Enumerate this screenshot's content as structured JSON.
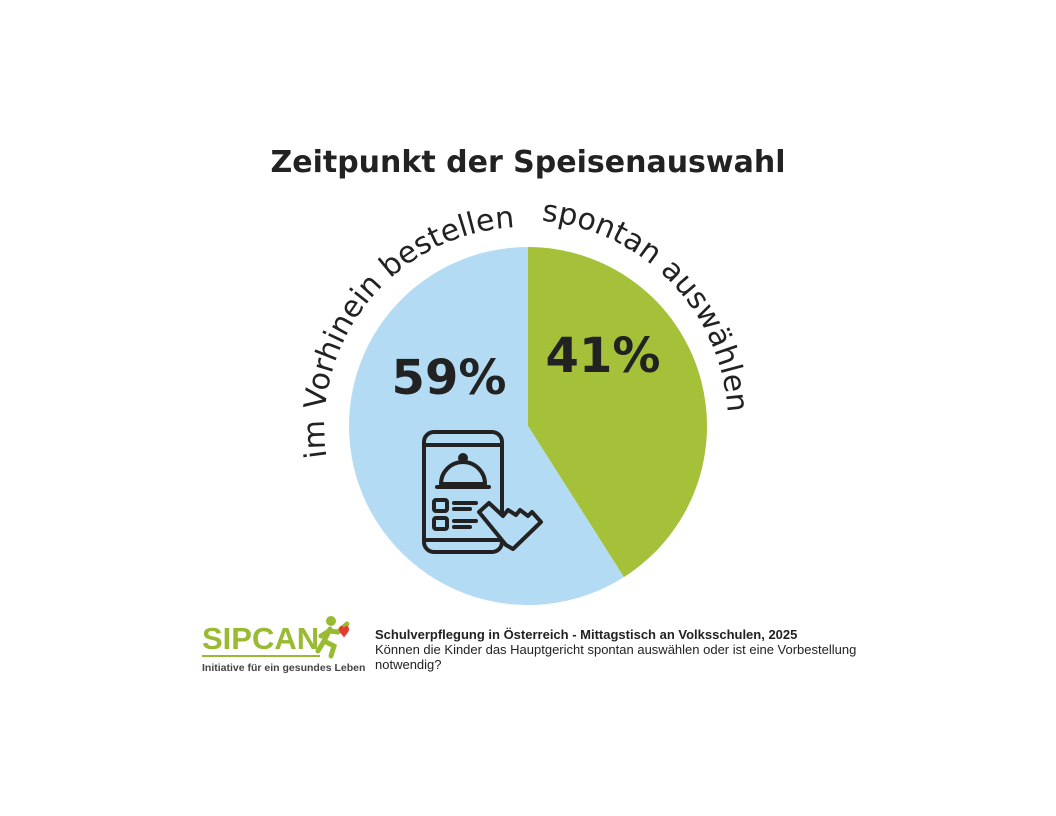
{
  "chart_data": {
    "type": "pie",
    "title": "Zeitpunkt der Speisenauswahl",
    "slices": [
      {
        "label": "spontan auswählen",
        "value": 41,
        "value_label": "41%",
        "color": "#a5c13a"
      },
      {
        "label": "im Vorhinein bestellen",
        "value": 59,
        "value_label": "59%",
        "color": "#b3dcf4"
      }
    ],
    "start_direction": "12 o'clock, clockwise"
  },
  "illustration_icon": "phone-menu-order-icon",
  "footer": {
    "logo": {
      "name": "SIPCAN",
      "tagline": "Initiative für ein gesundes Leben"
    },
    "source_title": "Schulverpflegung in Österreich - Mittagstisch an Volksschulen, 2025",
    "source_question": "Können die Kinder das Hauptgericht spontan auswählen oder ist eine Vorbestellung notwendig?"
  }
}
